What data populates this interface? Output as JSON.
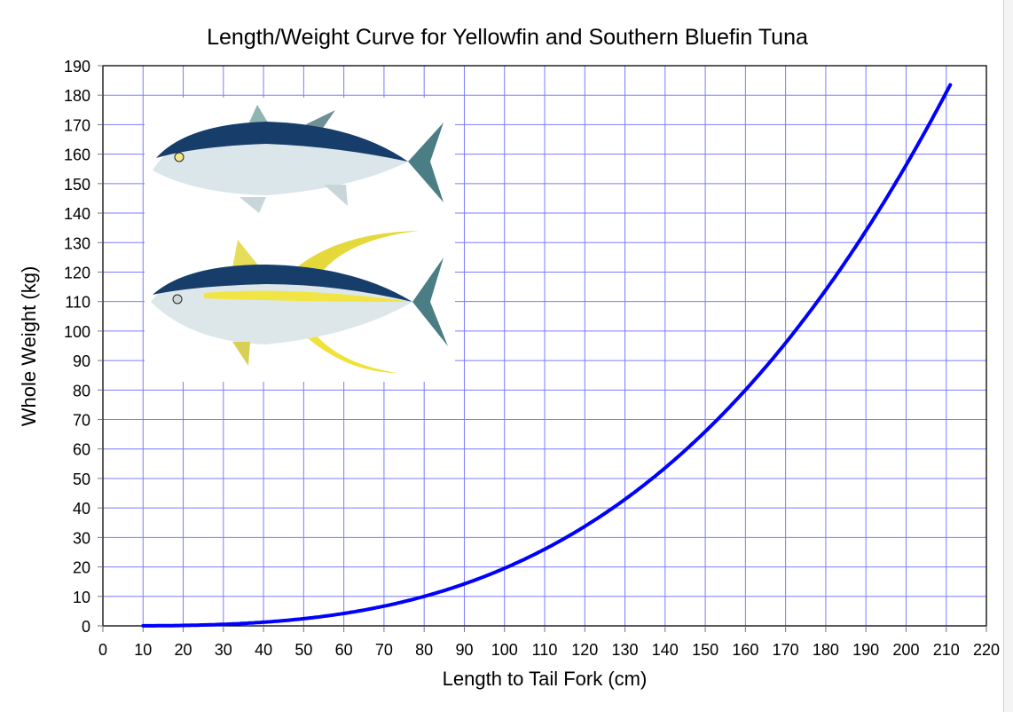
{
  "chart_data": {
    "type": "line",
    "title": "Length/Weight Curve for Yellowfin and Southern Bluefin Tuna",
    "xlabel": "Length to Tail Fork (cm)",
    "ylabel": "Whole Weight (kg)",
    "xlim": [
      0,
      220
    ],
    "ylim": [
      0,
      190
    ],
    "xticks": [
      0,
      10,
      20,
      30,
      40,
      50,
      60,
      70,
      80,
      90,
      100,
      110,
      120,
      130,
      140,
      150,
      160,
      170,
      180,
      190,
      200,
      210,
      220
    ],
    "yticks": [
      0,
      10,
      20,
      30,
      40,
      50,
      60,
      70,
      80,
      90,
      100,
      110,
      120,
      130,
      140,
      150,
      160,
      170,
      180,
      190
    ],
    "grid": true,
    "series": [
      {
        "name": "Whole Weight",
        "color": "#0000ff",
        "x": [
          10,
          20,
          30,
          40,
          50,
          60,
          70,
          80,
          90,
          100,
          110,
          120,
          130,
          140,
          150,
          160,
          170,
          180,
          190,
          200,
          210,
          211
        ],
        "y": [
          0.02,
          0.16,
          0.53,
          1.25,
          2.44,
          4.22,
          6.7,
          10.0,
          14.24,
          19.53,
          26.0,
          33.75,
          42.92,
          53.6,
          65.93,
          80.01,
          95.97,
          113.92,
          133.98,
          156.27,
          180.91,
          183.5
        ]
      }
    ],
    "grid_color": "#7b7bff",
    "inset_image": "tuna illustrations (southern bluefin above, yellowfin below)"
  }
}
